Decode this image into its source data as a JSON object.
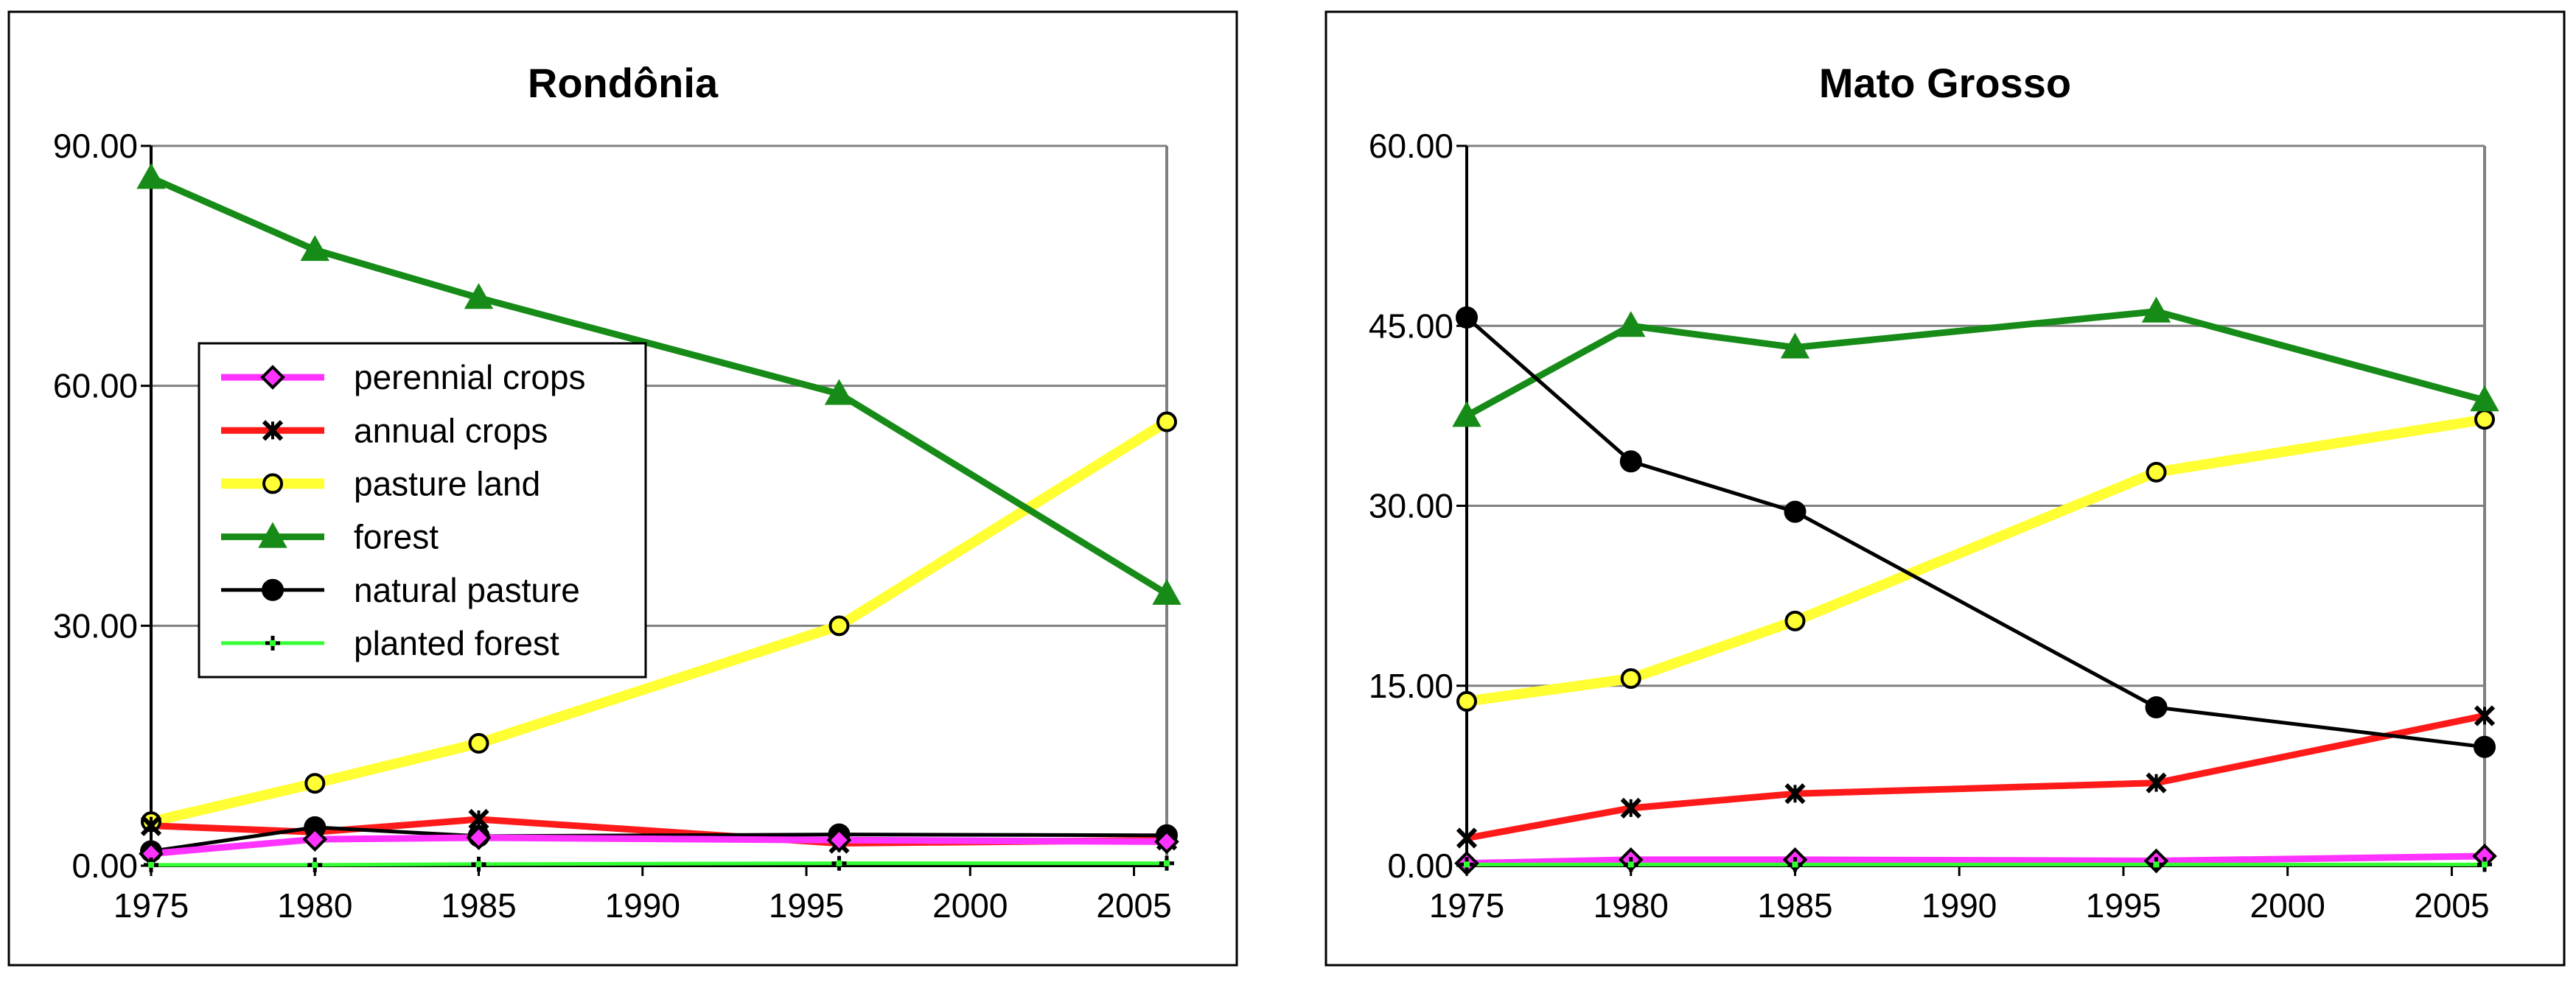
{
  "chart_data": [
    {
      "type": "line",
      "title": "Rondônia",
      "xlabel": "",
      "ylabel": "",
      "x_ticks": [
        1975,
        1980,
        1985,
        1990,
        1995,
        2000,
        2005
      ],
      "y_ticks": [
        "0.00",
        "30.00",
        "60.00",
        "90.00"
      ],
      "xlim": [
        1975,
        2006
      ],
      "ylim": [
        0,
        90
      ],
      "grid": true,
      "legend_placement": "center-left",
      "x": [
        1975,
        1980,
        1985,
        1996,
        2006
      ],
      "series": [
        {
          "name": "perennial crops",
          "key": "perennial",
          "values": [
            1.5,
            3.3,
            3.5,
            3.2,
            3.0
          ]
        },
        {
          "name": "annual crops",
          "key": "annual",
          "values": [
            5.0,
            4.2,
            5.8,
            2.8,
            3.2
          ]
        },
        {
          "name": "pasture land",
          "key": "pasture",
          "values": [
            5.5,
            10.3,
            15.3,
            30.0,
            55.5
          ]
        },
        {
          "name": "forest",
          "key": "forest",
          "values": [
            86.0,
            77.0,
            71.0,
            59.0,
            34.0
          ]
        },
        {
          "name": "natural pasture",
          "key": "natural",
          "values": [
            1.8,
            4.8,
            3.7,
            3.9,
            3.8
          ]
        },
        {
          "name": "planted forest",
          "key": "planted",
          "values": [
            0.1,
            0.1,
            0.2,
            0.3,
            0.3
          ]
        }
      ]
    },
    {
      "type": "line",
      "title": "Mato Grosso",
      "xlabel": "",
      "ylabel": "",
      "x_ticks": [
        1975,
        1980,
        1985,
        1990,
        1995,
        2000,
        2005
      ],
      "y_ticks": [
        "0.00",
        "15.00",
        "30.00",
        "45.00",
        "60.00"
      ],
      "xlim": [
        1975,
        2006
      ],
      "ylim": [
        0,
        60
      ],
      "grid": true,
      "legend_placement": "none",
      "x": [
        1975,
        1980,
        1985,
        1996,
        2006
      ],
      "series": [
        {
          "name": "perennial crops",
          "key": "perennial",
          "values": [
            0.2,
            0.5,
            0.5,
            0.4,
            0.8
          ]
        },
        {
          "name": "annual crops",
          "key": "annual",
          "values": [
            2.3,
            4.8,
            6.0,
            6.9,
            12.5
          ]
        },
        {
          "name": "pasture land",
          "key": "pasture",
          "values": [
            13.7,
            15.6,
            20.4,
            32.8,
            37.2
          ]
        },
        {
          "name": "forest",
          "key": "forest",
          "values": [
            37.5,
            45.0,
            43.2,
            46.2,
            38.8
          ]
        },
        {
          "name": "natural pasture",
          "key": "natural",
          "values": [
            45.7,
            33.7,
            29.5,
            13.2,
            9.9
          ]
        },
        {
          "name": "planted forest",
          "key": "planted",
          "values": [
            0.1,
            0.1,
            0.1,
            0.1,
            0.1
          ]
        }
      ]
    }
  ],
  "series_styles": {
    "perennial": {
      "color": "#ff33ff",
      "marker": "diamond",
      "weight": "medium"
    },
    "annual": {
      "color": "#ff1a1a",
      "marker": "xstar",
      "weight": "medium"
    },
    "pasture": {
      "color": "#ffff33",
      "marker": "circle-open",
      "weight": "heavy"
    },
    "forest": {
      "color": "#178b17",
      "marker": "triangle",
      "weight": "medium"
    },
    "natural": {
      "color": "#000000",
      "marker": "circle",
      "weight": "thin"
    },
    "planted": {
      "color": "#33ff33",
      "marker": "plus",
      "weight": "thin"
    }
  },
  "colors": {
    "grid": "#808080",
    "frame": "#000000",
    "background": "#ffffff"
  }
}
